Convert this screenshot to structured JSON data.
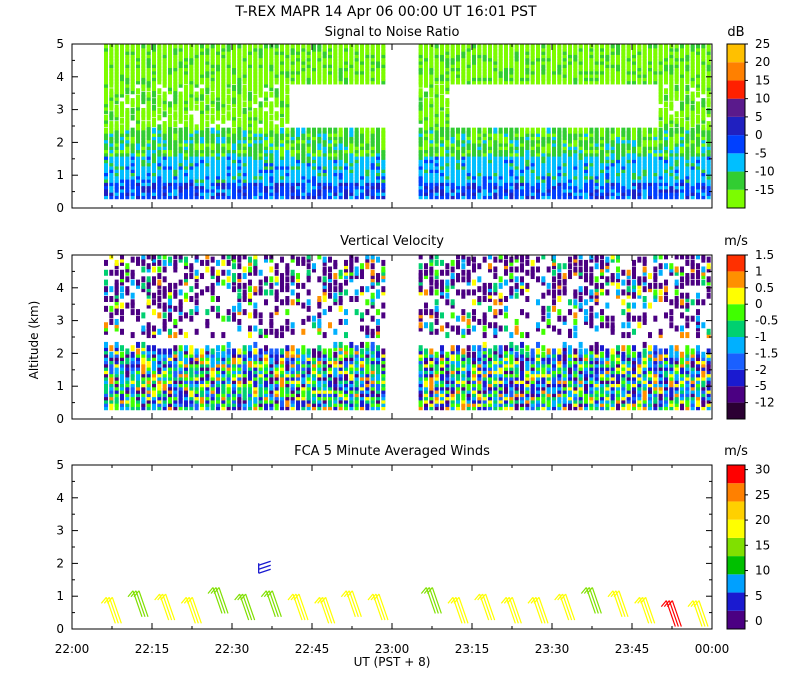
{
  "title": "T-REX  MAPR 14 Apr 06  00:00 UT  16:01  PST",
  "ylabel": "Altitude (km)",
  "xlabel": "UT  (PST + 8)",
  "x_ticks": [
    "22:00",
    "22:15",
    "22:30",
    "22:45",
    "23:00",
    "23:15",
    "23:30",
    "23:45",
    "00:00"
  ],
  "y_ticks": [
    "0",
    "1",
    "2",
    "3",
    "4",
    "5"
  ],
  "gap": {
    "start": "22:59",
    "end": "23:05"
  },
  "panels": [
    {
      "id": "snr",
      "title": "Signal to Noise Ratio",
      "unit": "dB",
      "colorbar_labels": [
        "-15",
        "-10",
        "-5",
        "0",
        "5",
        "10",
        "15",
        "20",
        "25"
      ],
      "colors": [
        "#7cfc00",
        "#32cd32",
        "#00bfff",
        "#0040ff",
        "#2020c0",
        "#5a1a8c",
        "#ff2000",
        "#ff8000",
        "#ffc000"
      ]
    },
    {
      "id": "velocity",
      "title": "Vertical Velocity",
      "unit": "m/s",
      "colorbar_labels": [
        "-12",
        "-5",
        "-2",
        "-1.5",
        "-1",
        "-0.5",
        "0",
        "0.5",
        "1",
        "1.5"
      ],
      "colors": [
        "#2b0033",
        "#4b0082",
        "#1a1ad0",
        "#1a60ff",
        "#00b0ff",
        "#00d070",
        "#40ff00",
        "#ffff00",
        "#ff9000",
        "#ff3000"
      ]
    },
    {
      "id": "winds",
      "title": "FCA 5 Minute Averaged Winds",
      "unit": "m/s",
      "colorbar_labels": [
        "0",
        "5",
        "10",
        "15",
        "20",
        "25",
        "30"
      ],
      "colors": [
        "#4b0082",
        "#1a1ad0",
        "#00a0ff",
        "#00c000",
        "#80e000",
        "#ffff00",
        "#ffd000",
        "#ff8000",
        "#ff0000"
      ]
    }
  ],
  "chart_data": {
    "type": "heatmap",
    "x_range": [
      "22:00",
      "00:00"
    ],
    "ylim": [
      0,
      5
    ],
    "snr_profile": [
      {
        "alt_km": [
          0.3,
          0.8
        ],
        "dB": -2
      },
      {
        "alt_km": [
          0.8,
          1.6
        ],
        "dB": -5
      },
      {
        "alt_km": [
          1.6,
          2.5
        ],
        "dB": -10
      },
      {
        "alt_km": [
          2.5,
          5.0
        ],
        "dB": -15
      }
    ],
    "velocity_layers_km": [
      [
        0.3,
        2.0
      ],
      [
        2.5,
        5.0
      ]
    ],
    "wind_barbs": [
      {
        "time": "22:07",
        "alt_km": 0.6,
        "speed_ms": 20
      },
      {
        "time": "22:12",
        "alt_km": 0.8,
        "speed_ms": 15
      },
      {
        "time": "22:17",
        "alt_km": 0.7,
        "speed_ms": 20
      },
      {
        "time": "22:22",
        "alt_km": 0.6,
        "speed_ms": 20
      },
      {
        "time": "22:27",
        "alt_km": 0.9,
        "speed_ms": 15
      },
      {
        "time": "22:32",
        "alt_km": 0.7,
        "speed_ms": 15
      },
      {
        "time": "22:35",
        "alt_km": 1.7,
        "speed_ms": 5
      },
      {
        "time": "22:37",
        "alt_km": 0.8,
        "speed_ms": 15
      },
      {
        "time": "22:42",
        "alt_km": 0.7,
        "speed_ms": 20
      },
      {
        "time": "22:47",
        "alt_km": 0.6,
        "speed_ms": 20
      },
      {
        "time": "22:52",
        "alt_km": 0.8,
        "speed_ms": 20
      },
      {
        "time": "22:57",
        "alt_km": 0.7,
        "speed_ms": 20
      },
      {
        "time": "23:07",
        "alt_km": 0.9,
        "speed_ms": 15
      },
      {
        "time": "23:12",
        "alt_km": 0.6,
        "speed_ms": 20
      },
      {
        "time": "23:17",
        "alt_km": 0.7,
        "speed_ms": 20
      },
      {
        "time": "23:22",
        "alt_km": 0.6,
        "speed_ms": 20
      },
      {
        "time": "23:27",
        "alt_km": 0.6,
        "speed_ms": 20
      },
      {
        "time": "23:32",
        "alt_km": 0.7,
        "speed_ms": 20
      },
      {
        "time": "23:37",
        "alt_km": 0.9,
        "speed_ms": 15
      },
      {
        "time": "23:42",
        "alt_km": 0.8,
        "speed_ms": 20
      },
      {
        "time": "23:47",
        "alt_km": 0.6,
        "speed_ms": 20
      },
      {
        "time": "23:52",
        "alt_km": 0.5,
        "speed_ms": 30
      },
      {
        "time": "23:57",
        "alt_km": 0.5,
        "speed_ms": 20
      }
    ]
  }
}
